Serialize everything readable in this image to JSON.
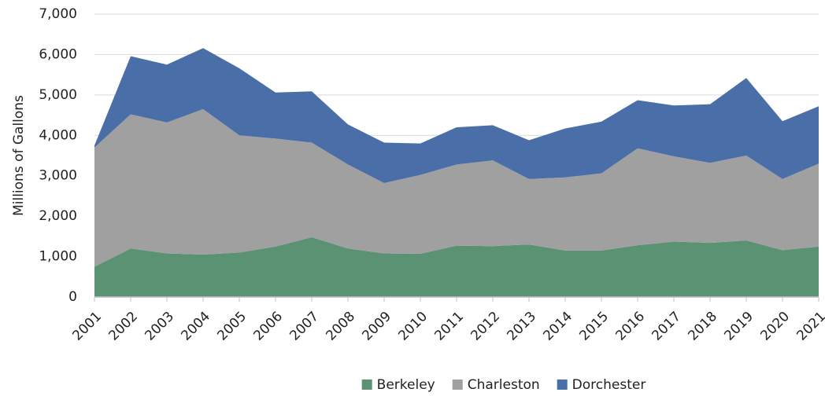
{
  "chart_data": {
    "type": "stacked_area",
    "y_label": "Millions of Gallons",
    "categories": [
      "2001",
      "2002",
      "2003",
      "2004",
      "2005",
      "2006",
      "2007",
      "2008",
      "2009",
      "2010",
      "2011",
      "2012",
      "2013",
      "2014",
      "2015",
      "2016",
      "2017",
      "2018",
      "2019",
      "2020",
      "2021"
    ],
    "series": [
      {
        "name": "Berkeley",
        "color": "#5b9274",
        "values": [
          750,
          1200,
          1080,
          1050,
          1100,
          1250,
          1480,
          1200,
          1080,
          1070,
          1270,
          1260,
          1300,
          1150,
          1150,
          1280,
          1370,
          1340,
          1400,
          1160,
          1250
        ]
      },
      {
        "name": "Charleston",
        "color": "#a0a0a0",
        "values": [
          2950,
          3320,
          3240,
          3600,
          2900,
          2670,
          2340,
          2080,
          1740,
          1950,
          2010,
          2120,
          1620,
          1810,
          1910,
          2400,
          2110,
          1980,
          2100,
          1760,
          2050
        ]
      },
      {
        "name": "Dorchester",
        "color": "#4a6ea8",
        "values": [
          50,
          1440,
          1430,
          1510,
          1660,
          1140,
          1270,
          990,
          1000,
          780,
          920,
          870,
          960,
          1210,
          1280,
          1190,
          1260,
          1450,
          1920,
          1430,
          1420
        ]
      }
    ],
    "ylim": [
      0,
      7000
    ],
    "yticks": [
      0,
      {
        "value": 1000,
        "label": "1,000"
      },
      {
        "value": 2000,
        "label": "2,000"
      },
      {
        "value": 3000,
        "label": "3,000"
      },
      {
        "value": 4000,
        "label": "4,000"
      },
      {
        "value": 5000,
        "label": "5,000"
      },
      {
        "value": 6000,
        "label": "6,000"
      },
      {
        "value": 7000,
        "label": "7,000"
      }
    ],
    "grid": true,
    "legend": "bottom"
  }
}
